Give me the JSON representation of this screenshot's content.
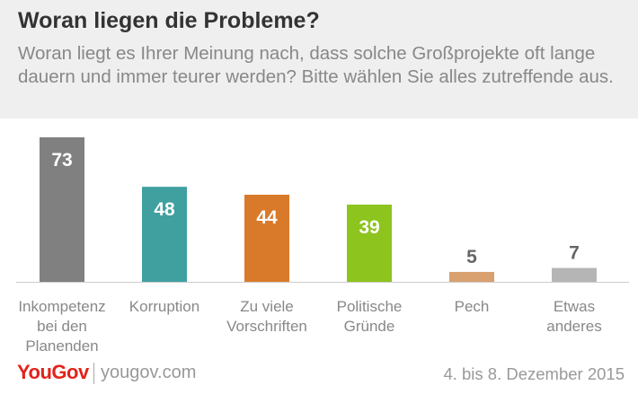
{
  "header": {
    "title": "Woran liegen die Probleme?",
    "subtitle": "Woran liegt es Ihrer Meinung nach, dass solche Großprojekte oft lange dauern und immer teurer werden? Bitte wählen Sie alles zutreffende aus."
  },
  "chart_data": {
    "type": "bar",
    "categories": [
      [
        "Inkompetenz",
        "bei den",
        "Planenden"
      ],
      [
        "Korruption"
      ],
      [
        "Zu viele",
        "Vorschriften"
      ],
      [
        "Politische",
        "Gründe"
      ],
      [
        "Pech"
      ],
      [
        "Etwas",
        "anderes"
      ]
    ],
    "values": [
      73,
      48,
      44,
      39,
      5,
      7
    ],
    "colors": [
      "#808080",
      "#40a0a0",
      "#d97a2a",
      "#8dc41e",
      "#d9a070",
      "#b5b5b5"
    ],
    "value_label_colors": [
      "#ffffff",
      "#ffffff",
      "#ffffff",
      "#ffffff",
      "#666666",
      "#666666"
    ],
    "baseline_color": "#cccccc",
    "ylim": [
      0,
      73
    ]
  },
  "footer": {
    "brand": "YouGov",
    "url": "yougov.com",
    "date": "4. bis 8. Dezember 2015"
  }
}
